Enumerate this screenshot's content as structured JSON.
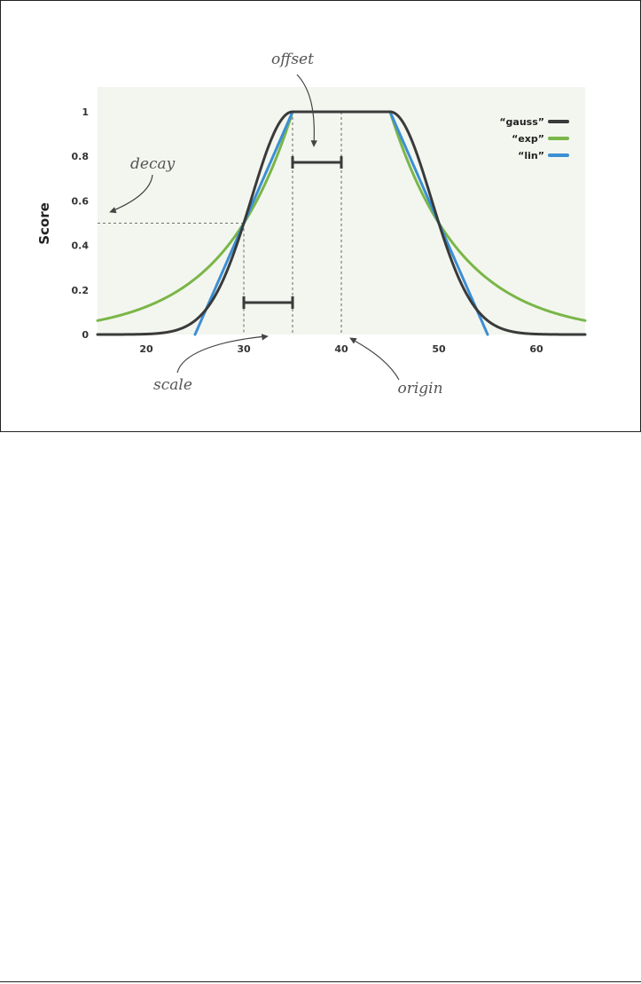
{
  "chart_data": {
    "type": "line",
    "title": "",
    "xlabel": "",
    "ylabel": "Score",
    "xlim": [
      15,
      65
    ],
    "ylim": [
      0,
      1.1
    ],
    "x_ticks": [
      20,
      30,
      40,
      50,
      60
    ],
    "y_ticks": [
      0,
      0.2,
      0.4,
      0.6,
      0.8,
      1
    ],
    "y_tick_labels": [
      "0",
      "0.2",
      "0.4",
      "0.6",
      "0.8",
      "1"
    ],
    "grid": false,
    "legend_position": "top-right",
    "parameters": {
      "origin": 40,
      "offset": 5,
      "scale": 5,
      "decay": 0.5
    },
    "series": [
      {
        "name": "“gauss”",
        "function": "gauss",
        "color": "#3a3a3a"
      },
      {
        "name": "“exp”",
        "function": "exp",
        "color": "#7ab648"
      },
      {
        "name": "“lin”",
        "function": "lin",
        "color": "#3b8fd4"
      }
    ],
    "annotations": [
      {
        "id": "offset",
        "text": "offset"
      },
      {
        "id": "decay",
        "text": "decay"
      },
      {
        "id": "scale",
        "text": "scale"
      },
      {
        "id": "origin",
        "text": "origin"
      }
    ]
  }
}
